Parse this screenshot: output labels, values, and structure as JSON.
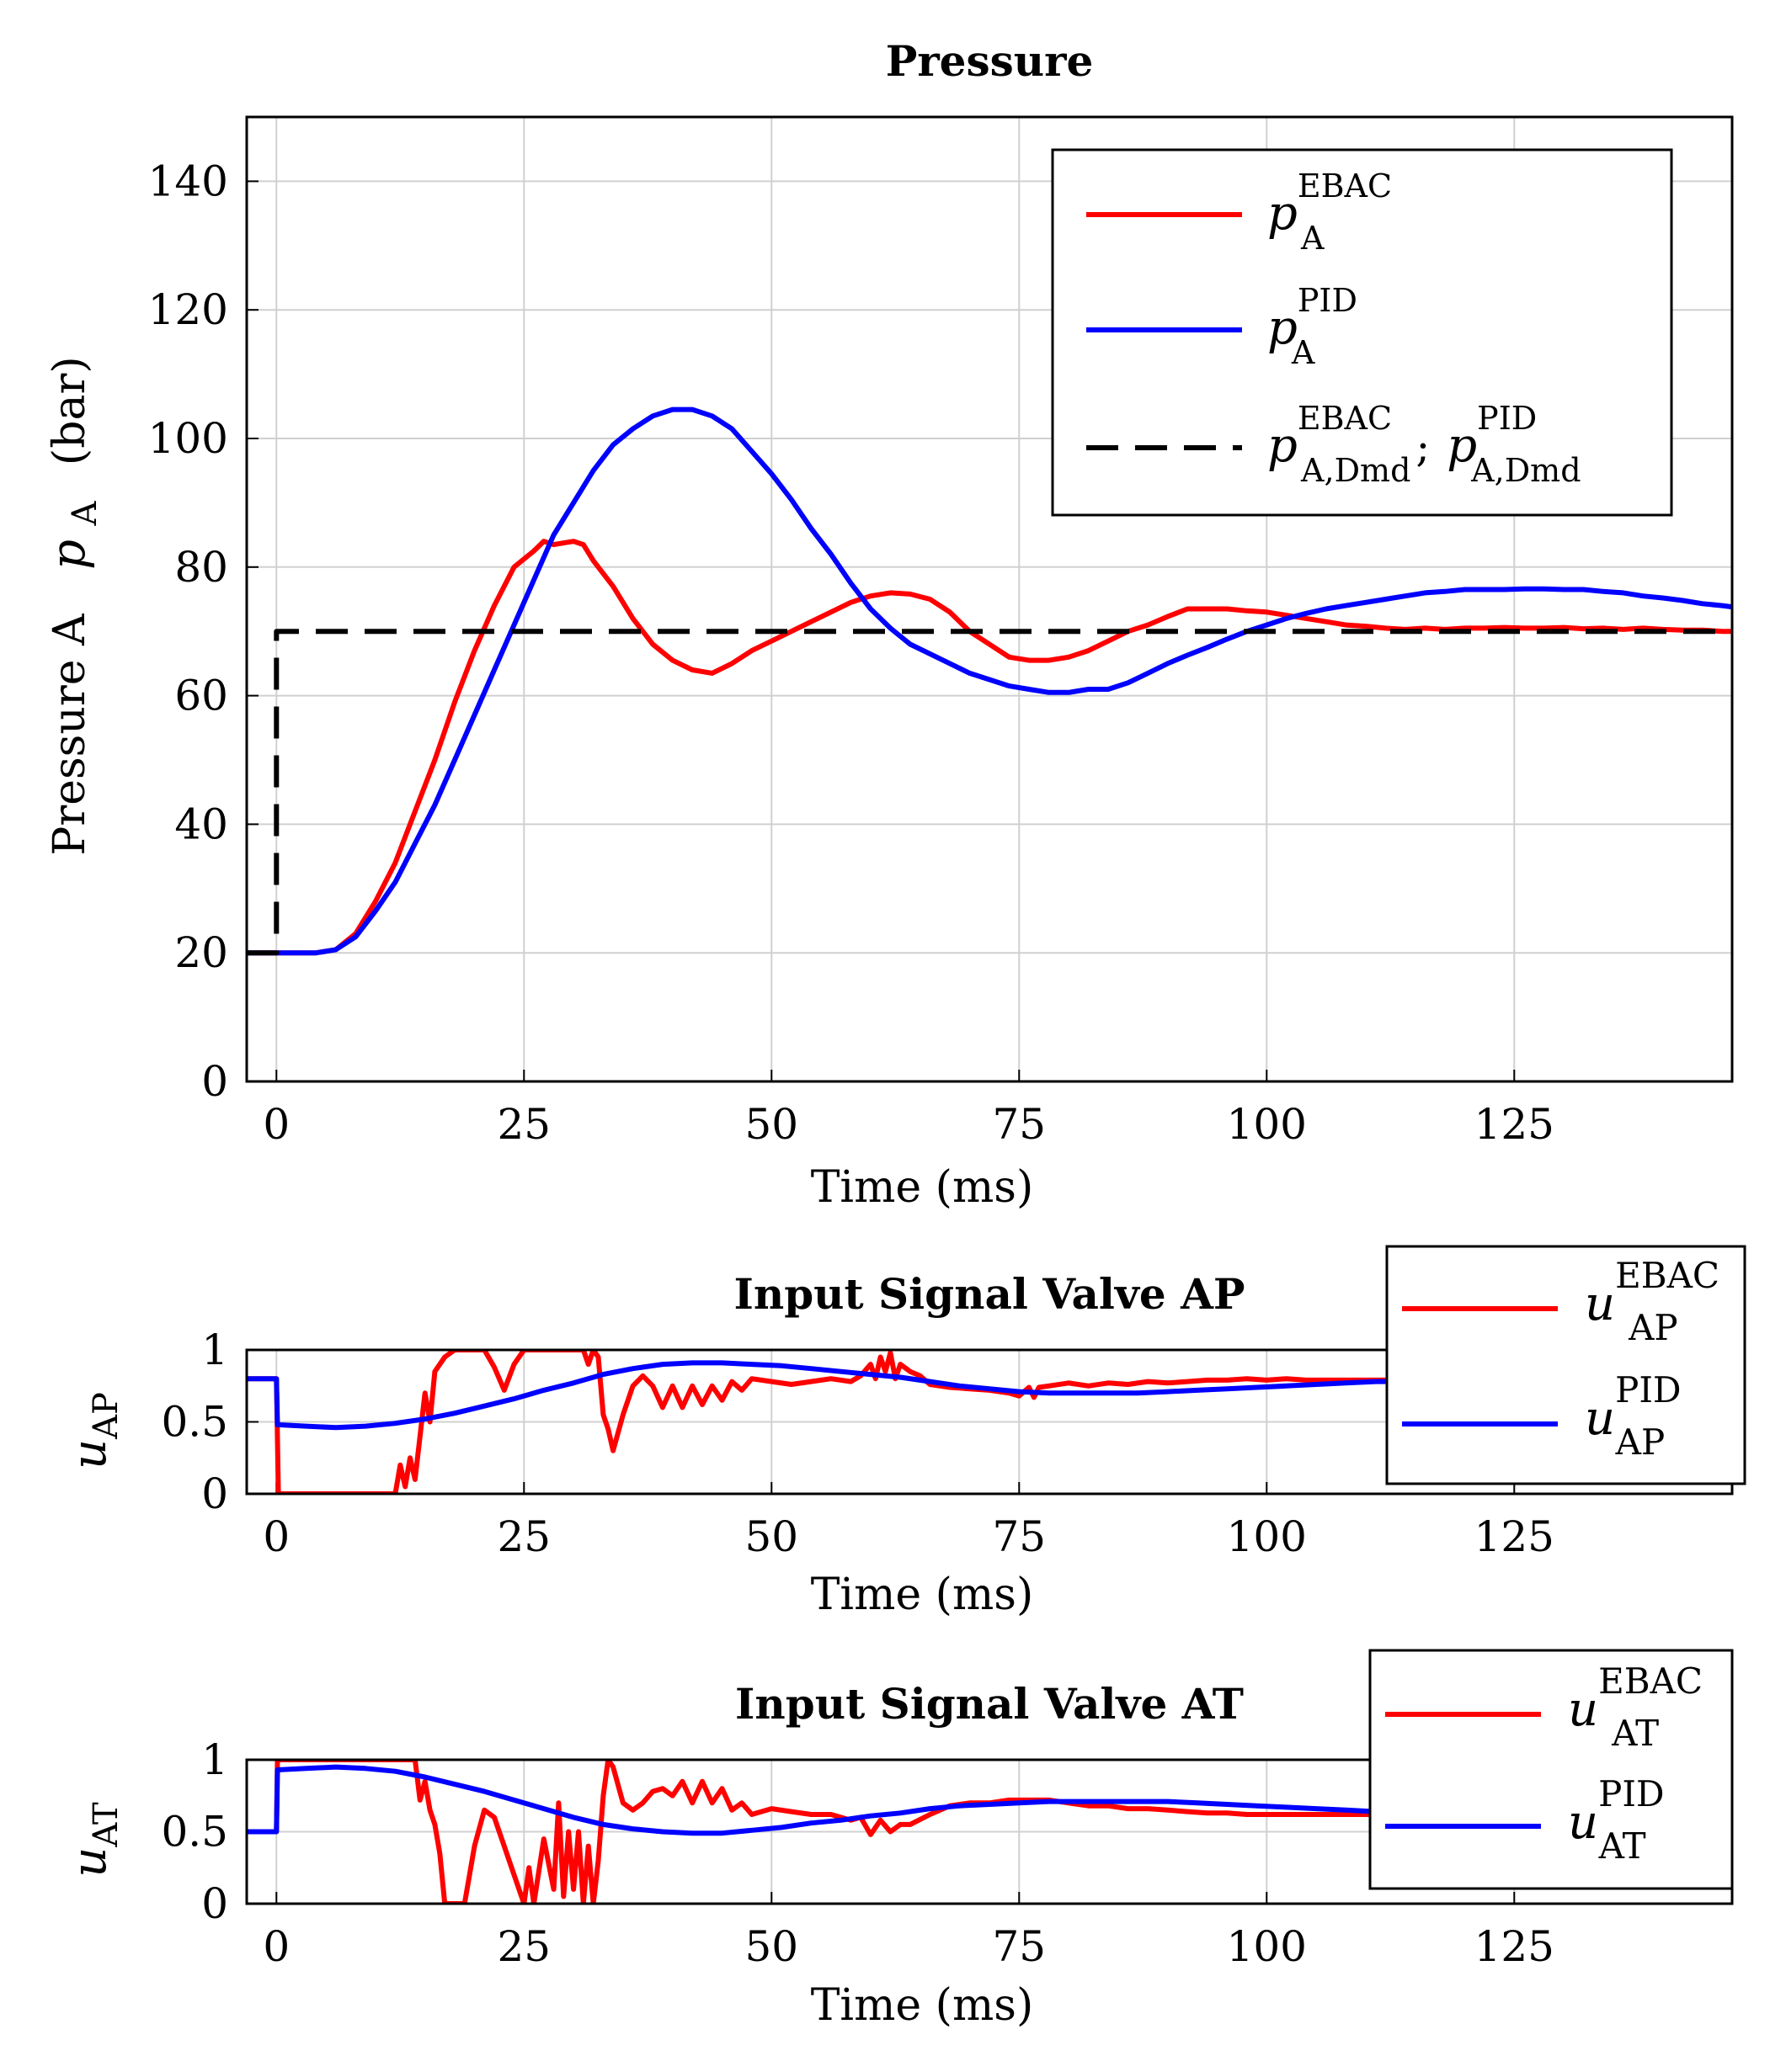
{
  "chart_data": [
    {
      "type": "line",
      "title": "Pressure",
      "xlabel": "Time  (ms)",
      "ylabel_text": "Pressure A",
      "ylabel_symbol": "p",
      "ylabel_sub": "A",
      "ylabel_unit": "(bar)",
      "xlim": [
        -3,
        147
      ],
      "ylim": [
        0,
        150
      ],
      "xticks": [
        0,
        25,
        50,
        75,
        100,
        125
      ],
      "yticks": [
        0,
        20,
        40,
        60,
        80,
        100,
        120,
        140
      ],
      "grid": true,
      "legend_position": "top-right",
      "legend": [
        {
          "sym": "p",
          "sup": "EBAC",
          "sub": "A"
        },
        {
          "sym": "p",
          "sup": "PID",
          "sub": "A"
        },
        {
          "sym": "p",
          "sup": "EBAC",
          "sub": "A,Dmd",
          "sep": ";",
          "sym2": "p",
          "sup2": "PID",
          "sub2": "A,Dmd"
        }
      ],
      "series": [
        {
          "key": "ebac",
          "color": "#ff0000",
          "dash": "solid",
          "x": [
            -3,
            0,
            2,
            4,
            6,
            8,
            10,
            12,
            14,
            16,
            18,
            20,
            22,
            24,
            26,
            27,
            28,
            30,
            31,
            32,
            34,
            36,
            38,
            40,
            42,
            44,
            46,
            48,
            50,
            52,
            54,
            56,
            58,
            60,
            62,
            64,
            66,
            68,
            70,
            72,
            74,
            76,
            78,
            80,
            82,
            84,
            86,
            88,
            90,
            92,
            94,
            96,
            98,
            100,
            102,
            104,
            106,
            108,
            110,
            112,
            114,
            116,
            118,
            120,
            122,
            124,
            126,
            128,
            130,
            132,
            134,
            136,
            138,
            140,
            142,
            144,
            146,
            147
          ],
          "y": [
            20,
            20,
            20,
            20,
            20.5,
            23,
            28,
            34,
            42,
            50,
            59,
            67,
            74,
            80,
            82.5,
            84,
            83.5,
            84,
            83.5,
            81,
            77,
            72,
            68,
            65.5,
            64,
            63.5,
            65,
            67,
            68.5,
            70,
            71.5,
            73,
            74.5,
            75.5,
            76,
            75.8,
            75,
            73,
            70,
            68,
            66,
            65.5,
            65.5,
            66,
            67,
            68.5,
            70,
            71,
            72.3,
            73.5,
            73.5,
            73.5,
            73.2,
            73,
            72.5,
            72,
            71.5,
            71,
            70.8,
            70.5,
            70.3,
            70.5,
            70.3,
            70.5,
            70.5,
            70.6,
            70.5,
            70.5,
            70.6,
            70.4,
            70.5,
            70.3,
            70.5,
            70.3,
            70.2,
            70.2,
            70,
            70
          ]
        },
        {
          "key": "pid",
          "color": "#0000ff",
          "dash": "solid",
          "x": [
            -3,
            0,
            2,
            4,
            6,
            8,
            10,
            12,
            14,
            16,
            18,
            20,
            22,
            24,
            26,
            28,
            30,
            32,
            34,
            36,
            38,
            40,
            42,
            44,
            46,
            48,
            50,
            52,
            54,
            56,
            58,
            60,
            62,
            64,
            66,
            68,
            70,
            72,
            74,
            76,
            78,
            80,
            82,
            84,
            86,
            88,
            90,
            92,
            94,
            96,
            98,
            100,
            102,
            104,
            106,
            108,
            110,
            112,
            114,
            116,
            118,
            120,
            122,
            124,
            126,
            128,
            130,
            132,
            134,
            136,
            138,
            140,
            142,
            144,
            146,
            147
          ],
          "y": [
            20,
            20,
            20,
            20,
            20.5,
            22.5,
            26.5,
            31,
            37,
            43,
            50,
            57,
            64,
            71,
            78,
            85,
            90,
            95,
            99,
            101.5,
            103.5,
            104.5,
            104.5,
            103.5,
            101.5,
            98,
            94.5,
            90.5,
            86,
            82,
            77.5,
            73.5,
            70.5,
            68,
            66.5,
            65,
            63.5,
            62.5,
            61.5,
            61,
            60.5,
            60.5,
            61,
            61,
            62,
            63.5,
            65,
            66.3,
            67.5,
            68.8,
            70,
            71,
            72,
            72.8,
            73.5,
            74,
            74.5,
            75,
            75.5,
            76,
            76.2,
            76.5,
            76.5,
            76.5,
            76.6,
            76.6,
            76.5,
            76.5,
            76.2,
            76,
            75.5,
            75.2,
            74.8,
            74.3,
            74,
            73.8
          ]
        },
        {
          "key": "dmd",
          "color": "#000000",
          "dash": "dashed",
          "x": [
            -3,
            0,
            0,
            147
          ],
          "y": [
            20,
            20,
            70,
            70
          ]
        }
      ]
    },
    {
      "type": "line",
      "title": "Input Signal Valve AP",
      "xlabel": "Time  (ms)",
      "ylabel_symbol": "u",
      "ylabel_sub": "AP",
      "xlim": [
        -3,
        147
      ],
      "ylim": [
        0,
        1
      ],
      "xticks": [
        0,
        25,
        50,
        75,
        100,
        125
      ],
      "yticks": [
        0,
        0.5,
        1
      ],
      "grid": true,
      "legend_position": "top-right (outside)",
      "legend": [
        {
          "sym": "u",
          "sup": "EBAC",
          "sub": "AP"
        },
        {
          "sym": "u",
          "sup": "PID",
          "sub": "AP"
        }
      ],
      "series": [
        {
          "key": "ebac",
          "color": "#ff0000",
          "dash": "solid",
          "x": [
            -3,
            0,
            0.2,
            2,
            6,
            10,
            12,
            12.5,
            13,
            13.5,
            14,
            14.5,
            15,
            15.5,
            16,
            17,
            18,
            19,
            20,
            21,
            22,
            23,
            24,
            25,
            26,
            28,
            30,
            31,
            31.5,
            32,
            32.5,
            33,
            33.5,
            34,
            35,
            36,
            37,
            38,
            39,
            40,
            41,
            42,
            43,
            44,
            45,
            46,
            47,
            48,
            50,
            52,
            54,
            56,
            58,
            59,
            60,
            60.5,
            61,
            61.5,
            62,
            62.5,
            63,
            64,
            65,
            66,
            68,
            70,
            72,
            74,
            75,
            76,
            76.5,
            77,
            78,
            80,
            82,
            84,
            86,
            88,
            90,
            92,
            94,
            96,
            98,
            100,
            102,
            104,
            106,
            108,
            110,
            112
          ],
          "y": [
            0.8,
            0.8,
            0,
            0,
            0,
            0,
            0,
            0.2,
            0.05,
            0.25,
            0.1,
            0.4,
            0.7,
            0.5,
            0.85,
            0.95,
            1,
            1,
            1,
            1,
            0.88,
            0.72,
            0.9,
            1,
            1,
            1,
            1,
            1,
            0.9,
            1,
            0.95,
            0.55,
            0.45,
            0.3,
            0.55,
            0.75,
            0.82,
            0.75,
            0.6,
            0.75,
            0.6,
            0.75,
            0.62,
            0.75,
            0.65,
            0.78,
            0.72,
            0.8,
            0.78,
            0.76,
            0.78,
            0.8,
            0.78,
            0.82,
            0.9,
            0.8,
            0.95,
            0.85,
            0.98,
            0.8,
            0.9,
            0.85,
            0.82,
            0.76,
            0.74,
            0.73,
            0.72,
            0.7,
            0.68,
            0.74,
            0.67,
            0.74,
            0.75,
            0.77,
            0.75,
            0.77,
            0.76,
            0.78,
            0.77,
            0.78,
            0.79,
            0.79,
            0.8,
            0.79,
            0.8,
            0.79,
            0.79,
            0.79,
            0.79,
            0.79
          ]
        },
        {
          "key": "pid",
          "color": "#0000ff",
          "dash": "solid",
          "x": [
            -3,
            0,
            0.1,
            3,
            6,
            9,
            12,
            15,
            18,
            21,
            24,
            27,
            30,
            33,
            36,
            39,
            42,
            45,
            48,
            51,
            54,
            57,
            60,
            63,
            66,
            69,
            72,
            75,
            78,
            81,
            84,
            87,
            90,
            93,
            96,
            99,
            102,
            105,
            108,
            111,
            112
          ],
          "y": [
            0.8,
            0.8,
            0.48,
            0.47,
            0.46,
            0.47,
            0.49,
            0.52,
            0.56,
            0.61,
            0.66,
            0.72,
            0.77,
            0.83,
            0.87,
            0.9,
            0.91,
            0.91,
            0.9,
            0.89,
            0.87,
            0.85,
            0.83,
            0.81,
            0.78,
            0.75,
            0.73,
            0.71,
            0.7,
            0.7,
            0.7,
            0.7,
            0.71,
            0.72,
            0.73,
            0.74,
            0.75,
            0.76,
            0.77,
            0.78,
            0.78
          ]
        }
      ]
    },
    {
      "type": "line",
      "title": "Input Signal Valve AT",
      "xlabel": "Time  (ms)",
      "ylabel_symbol": "u",
      "ylabel_sub": "AT",
      "xlim": [
        -3,
        147
      ],
      "ylim": [
        0,
        1
      ],
      "xticks": [
        0,
        25,
        50,
        75,
        100,
        125
      ],
      "yticks": [
        0,
        0.5,
        1
      ],
      "grid": true,
      "legend_position": "top-right (outside)",
      "legend": [
        {
          "sym": "u",
          "sup": "EBAC",
          "sub": "AT"
        },
        {
          "sym": "u",
          "sup": "PID",
          "sub": "AT"
        }
      ],
      "series": [
        {
          "key": "ebac",
          "color": "#ff0000",
          "dash": "solid",
          "x": [
            -3,
            0,
            0.1,
            5,
            10,
            13,
            14,
            14.5,
            15,
            15.5,
            16,
            16.5,
            17,
            18,
            19,
            20,
            21,
            22,
            23,
            24,
            25,
            25.5,
            26,
            27,
            28,
            28.5,
            29,
            29.5,
            30,
            30.5,
            31,
            31.5,
            32,
            32.5,
            33,
            33.5,
            34,
            35,
            36,
            37,
            38,
            39,
            40,
            41,
            42,
            43,
            44,
            45,
            46,
            47,
            48,
            50,
            52,
            54,
            56,
            58,
            59,
            60,
            61,
            62,
            63,
            64,
            66,
            68,
            70,
            72,
            74,
            76,
            78,
            80,
            82,
            84,
            86,
            88,
            90,
            92,
            94,
            96,
            98,
            100,
            102,
            104,
            106,
            108,
            110,
            112
          ],
          "y": [
            0.5,
            0.5,
            1,
            1,
            1,
            1,
            1,
            0.72,
            0.85,
            0.65,
            0.55,
            0.35,
            0,
            0,
            0,
            0.4,
            0.65,
            0.6,
            0.4,
            0.2,
            0,
            0.25,
            0,
            0.45,
            0.1,
            0.7,
            0.05,
            0.5,
            0.1,
            0.5,
            0,
            0.4,
            0,
            0.3,
            0.75,
            1,
            0.95,
            0.7,
            0.65,
            0.7,
            0.78,
            0.8,
            0.75,
            0.85,
            0.7,
            0.85,
            0.7,
            0.8,
            0.65,
            0.7,
            0.62,
            0.66,
            0.64,
            0.62,
            0.62,
            0.58,
            0.6,
            0.48,
            0.58,
            0.5,
            0.55,
            0.55,
            0.62,
            0.68,
            0.7,
            0.7,
            0.72,
            0.72,
            0.72,
            0.7,
            0.68,
            0.68,
            0.66,
            0.66,
            0.65,
            0.64,
            0.63,
            0.63,
            0.62,
            0.62,
            0.62,
            0.62,
            0.62,
            0.62,
            0.62,
            0.62
          ]
        },
        {
          "key": "pid",
          "color": "#0000ff",
          "dash": "solid",
          "x": [
            -3,
            0,
            0.1,
            3,
            6,
            9,
            12,
            15,
            18,
            21,
            24,
            27,
            30,
            33,
            36,
            39,
            42,
            45,
            48,
            51,
            54,
            57,
            60,
            63,
            66,
            69,
            72,
            75,
            78,
            81,
            84,
            87,
            90,
            93,
            96,
            99,
            102,
            105,
            108,
            111,
            112
          ],
          "y": [
            0.5,
            0.5,
            0.93,
            0.94,
            0.95,
            0.94,
            0.92,
            0.88,
            0.83,
            0.78,
            0.72,
            0.66,
            0.6,
            0.55,
            0.52,
            0.5,
            0.49,
            0.49,
            0.51,
            0.53,
            0.56,
            0.58,
            0.61,
            0.63,
            0.66,
            0.68,
            0.69,
            0.7,
            0.71,
            0.71,
            0.71,
            0.71,
            0.71,
            0.7,
            0.69,
            0.68,
            0.67,
            0.66,
            0.65,
            0.64,
            0.64
          ]
        }
      ]
    }
  ]
}
